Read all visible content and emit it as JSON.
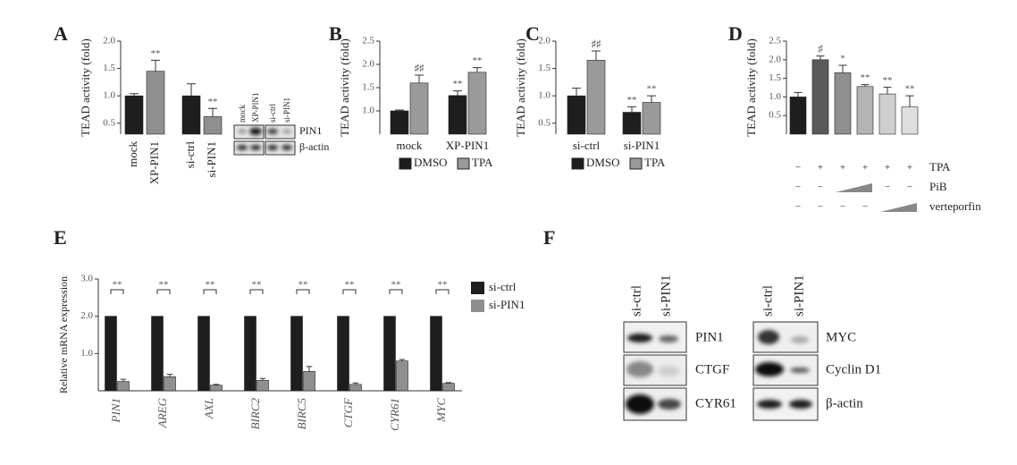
{
  "panels": [
    "A",
    "B",
    "C",
    "D",
    "E",
    "F"
  ],
  "chart_data": [
    {
      "type": "bar",
      "ylabel": "TEAD activity (fold)",
      "categories": [
        "mock",
        "XP-PIN1",
        "si-ctrl",
        "si-PIN1"
      ],
      "values": [
        1.0,
        1.45,
        1.0,
        0.62
      ],
      "errors": [
        0.04,
        0.2,
        0.22,
        0.15
      ],
      "colors": [
        "#1e1e1e",
        "#8f8f8f",
        "#1e1e1e",
        "#8f8f8f"
      ],
      "annotations": [
        null,
        "**",
        null,
        "**"
      ],
      "ylim": [
        0.3,
        2.0
      ],
      "yticks": [
        0.5,
        {
          "value": 1,
          "label": "1.0"
        },
        1.5,
        {
          "value": 2,
          "label": "2.0"
        }
      ]
    },
    {
      "type": "grouped_bar",
      "ylabel": "TEAD activity (fold)",
      "categories": [
        "mock",
        "XP-PIN1"
      ],
      "series": [
        {
          "name": "DMSO",
          "color": "#1e1e1e",
          "values": [
            1.0,
            1.33
          ],
          "errors": [
            0.02,
            0.1
          ],
          "annotations": [
            null,
            "**"
          ]
        },
        {
          "name": "TPA",
          "color": "#9a9a9a",
          "values": [
            1.6,
            1.83
          ],
          "errors": [
            0.17,
            0.1
          ],
          "annotations": [
            "♯♯",
            "**"
          ]
        }
      ],
      "ylim": [
        0.5,
        2.5
      ],
      "yticks": [
        {
          "value": 1,
          "label": "1.0"
        },
        1.5,
        {
          "value": 2,
          "label": "2.0"
        },
        2.5
      ]
    },
    {
      "type": "grouped_bar",
      "ylabel": "TEAD activity (fold)",
      "categories": [
        "si-ctrl",
        "si-PIN1"
      ],
      "series": [
        {
          "name": "DMSO",
          "color": "#1e1e1e",
          "values": [
            1.0,
            0.7
          ],
          "errors": [
            0.14,
            0.1
          ],
          "annotations": [
            null,
            "**"
          ]
        },
        {
          "name": "TPA",
          "color": "#9a9a9a",
          "values": [
            1.65,
            0.88
          ],
          "errors": [
            0.17,
            0.12
          ],
          "annotations": [
            "♯♯",
            "**"
          ]
        }
      ],
      "ylim": [
        0.3,
        2.0
      ],
      "yticks": [
        0.5,
        {
          "value": 1,
          "label": "1.0"
        },
        1.5,
        {
          "value": 2,
          "label": "2.0"
        }
      ]
    },
    {
      "type": "bar",
      "ylabel": "TEAD activity (fold)",
      "values": [
        1.0,
        2.0,
        1.65,
        1.28,
        1.08,
        0.73
      ],
      "errors": [
        0.12,
        0.1,
        0.2,
        0.05,
        0.18,
        0.3
      ],
      "colors": [
        "#1e1e1e",
        "#5a5a5a",
        "#8f8f8f",
        "#b4b4b4",
        "#cfcfcf",
        "#dedede"
      ],
      "annotations": [
        null,
        "♯",
        "*",
        "**",
        "**",
        "**"
      ],
      "ylim": [
        0,
        2.5
      ],
      "yticks": [
        0.5,
        {
          "value": 1,
          "label": "1.0"
        },
        1.5,
        {
          "value": 2,
          "label": "2.0"
        },
        2.5
      ],
      "treatments": [
        {
          "name": "TPA",
          "signs": [
            "−",
            "+",
            "+",
            "+",
            "+",
            "+"
          ]
        },
        {
          "name": "PiB",
          "signs": [
            "−",
            "−",
            null,
            null,
            "−",
            "−"
          ]
        },
        {
          "name": "verteporfin",
          "signs": [
            "−",
            "−",
            "−",
            "−",
            null,
            null
          ]
        }
      ]
    },
    {
      "type": "grouped_bar",
      "ylabel": "Relative mRNA expression",
      "categories": [
        "PIN1",
        "AREG",
        "AXL",
        "BIRC2",
        "BIRC5",
        "CTGF",
        "CYR61",
        "MYC"
      ],
      "series": [
        {
          "name": "si-ctrl",
          "color": "#1e1e1e",
          "values": [
            2.0,
            2.0,
            2.0,
            2.0,
            2.0,
            2.0,
            2.0,
            2.0
          ]
        },
        {
          "name": "si-PIN1",
          "color": "#8f8f8f",
          "values": [
            0.25,
            0.38,
            0.15,
            0.28,
            0.52,
            0.17,
            0.8,
            0.2
          ],
          "errors": [
            0.06,
            0.06,
            0.02,
            0.05,
            0.13,
            0.04,
            0.04,
            0.02
          ]
        }
      ],
      "brackets": [
        "**",
        "**",
        "**",
        "**",
        "**",
        "**",
        "**",
        "**"
      ],
      "ylim": [
        0,
        3
      ],
      "yticks": [
        {
          "value": 1,
          "label": "1.0"
        },
        {
          "value": 2,
          "label": "2.0"
        },
        {
          "value": 3,
          "label": "3.0"
        }
      ]
    }
  ],
  "blot_a": {
    "lanes": [
      "mock",
      "XP-PIN1",
      "si-ctrl",
      "si-PIN1"
    ],
    "rows": [
      "PIN1",
      "β-actin"
    ]
  },
  "blot_f": {
    "lanes": [
      "si-ctrl",
      "si-PIN1"
    ],
    "left_rows": [
      "PIN1",
      "CTGF",
      "CYR61"
    ],
    "right_rows": [
      "MYC",
      "Cyclin D1",
      "β-actin"
    ]
  }
}
